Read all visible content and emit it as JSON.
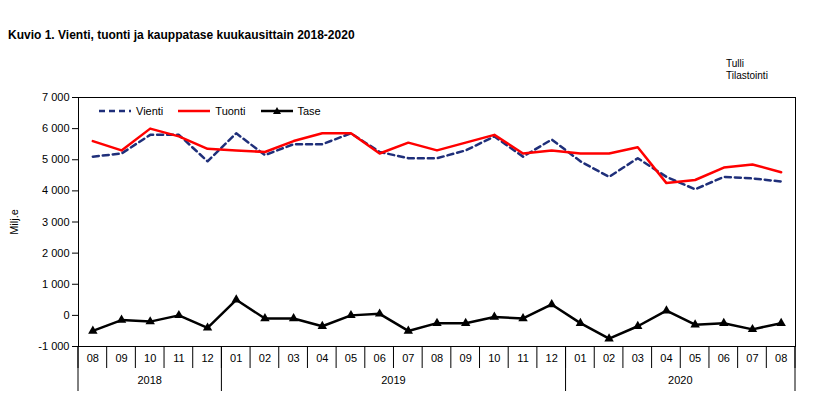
{
  "chart_data": {
    "type": "line",
    "title": "Kuvio  1. Vienti, tuonti ja kauppatase kuukausittain 2018-2020",
    "source": [
      "Tulli",
      "Tilastointi"
    ],
    "y_label": "Milj.e",
    "categories": [
      "08",
      "09",
      "10",
      "11",
      "12",
      "01",
      "02",
      "03",
      "04",
      "05",
      "06",
      "07",
      "08",
      "09",
      "10",
      "11",
      "12",
      "01",
      "02",
      "03",
      "04",
      "05",
      "06",
      "07",
      "08"
    ],
    "category_groups": [
      {
        "label": "2018",
        "count": 5
      },
      {
        "label": "2019",
        "count": 12
      },
      {
        "label": "2020",
        "count": 8
      }
    ],
    "series": [
      {
        "name": "Vienti",
        "color": "#1f2f7a",
        "line_style": "dashed",
        "values": [
          5100,
          5200,
          5800,
          5800,
          4950,
          5850,
          5150,
          5500,
          5500,
          5850,
          5250,
          5050,
          5050,
          5300,
          5750,
          5100,
          5650,
          4950,
          4450,
          5050,
          4450,
          4050,
          4450,
          4400,
          4300
        ]
      },
      {
        "name": "Tuonti",
        "color": "#ff0000",
        "line_style": "solid",
        "values": [
          5600,
          5300,
          6000,
          5750,
          5350,
          5300,
          5250,
          5600,
          5850,
          5850,
          5200,
          5550,
          5300,
          5550,
          5800,
          5200,
          5300,
          5200,
          5200,
          5400,
          4250,
          4350,
          4750,
          4850,
          4600
        ]
      },
      {
        "name": "Tase",
        "color": "#000000",
        "line_style": "solid",
        "marker": "triangle",
        "values": [
          -500,
          -150,
          -200,
          0,
          -400,
          500,
          -100,
          -100,
          -350,
          0,
          50,
          -500,
          -250,
          -250,
          -50,
          -100,
          350,
          -250,
          -750,
          -350,
          150,
          -300,
          -250,
          -450,
          -250
        ]
      }
    ],
    "ylim": [
      -1000,
      7000
    ],
    "yticks": [
      {
        "value": -1000,
        "label": "-1 000"
      },
      0,
      {
        "value": 1000,
        "label": "1 000"
      },
      {
        "value": 2000,
        "label": "2 000"
      },
      {
        "value": 3000,
        "label": "3 000"
      },
      {
        "value": 4000,
        "label": "4 000"
      },
      {
        "value": 5000,
        "label": "5 000"
      },
      {
        "value": 6000,
        "label": "6 000"
      },
      {
        "value": 7000,
        "label": "7 000"
      }
    ],
    "grid": false,
    "legend": "top-left"
  }
}
